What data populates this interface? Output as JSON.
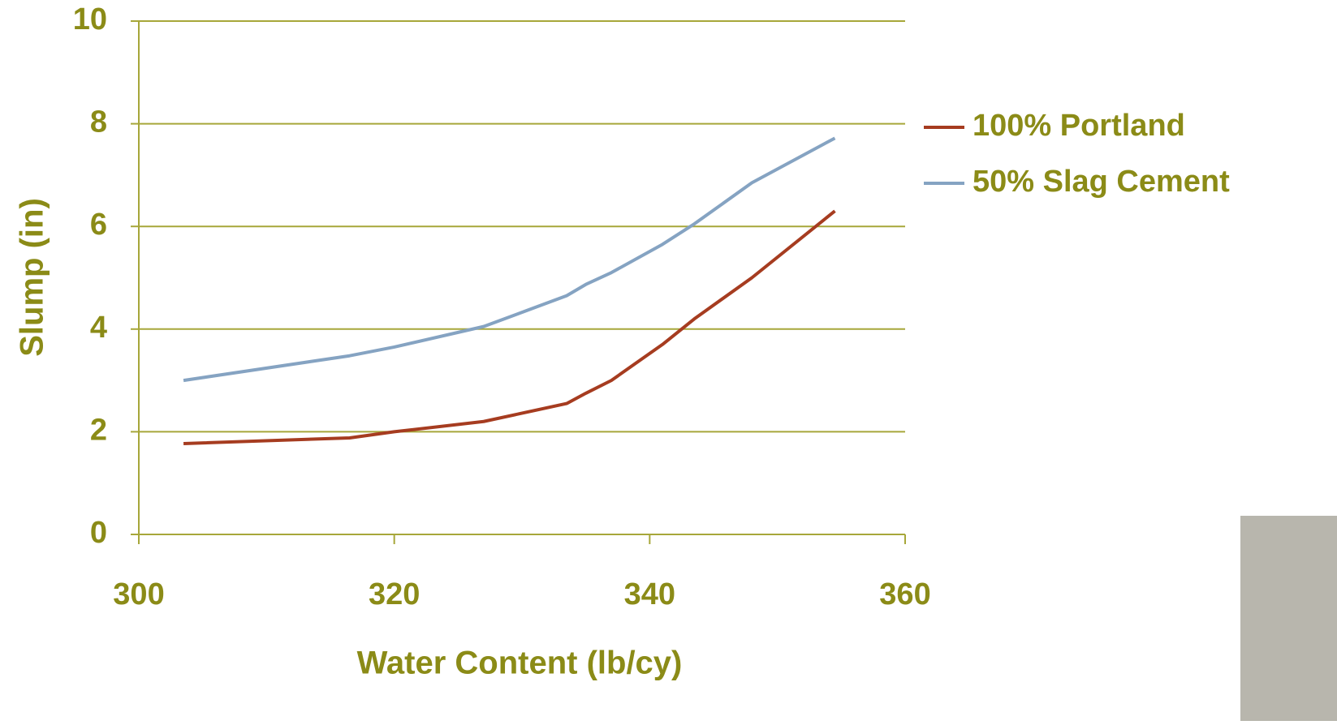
{
  "chart_data": {
    "type": "line",
    "x_label": "Water Content (lb/cy)",
    "y_label": "Slump (in)",
    "x": [
      303.5,
      316.5,
      320,
      327,
      333.5,
      335,
      337,
      341,
      343.5,
      348,
      354.5
    ],
    "series": [
      {
        "name": "100% Portland",
        "color": "#a63c20",
        "values": [
          1.77,
          1.88,
          2.0,
          2.2,
          2.55,
          2.75,
          3.0,
          3.7,
          4.2,
          5.0,
          6.3
        ]
      },
      {
        "name": "50% Slag Cement",
        "color": "#85a3c2",
        "values": [
          3.0,
          3.48,
          3.65,
          4.05,
          4.65,
          4.87,
          5.1,
          5.65,
          6.05,
          6.85,
          7.72
        ]
      }
    ],
    "xlim": [
      300,
      360
    ],
    "ylim": [
      0,
      10
    ],
    "xticks": [
      300,
      320,
      340,
      360
    ],
    "yticks": [
      0,
      2,
      4,
      6,
      8,
      10
    ],
    "grid": true,
    "legend": "right"
  }
}
